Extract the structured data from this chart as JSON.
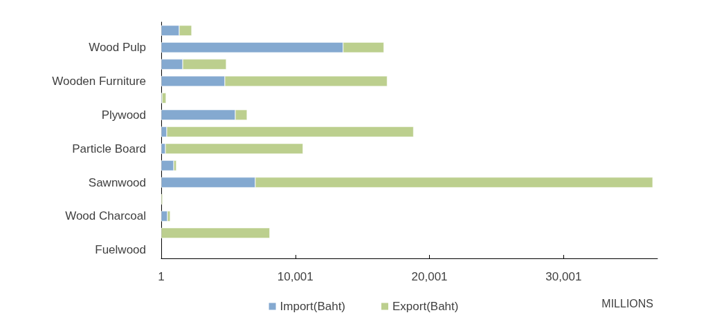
{
  "chart_data": {
    "type": "bar",
    "orientation": "horizontal",
    "stacked": true,
    "categories": [
      null,
      "Wood Pulp",
      null,
      "Wooden Furniture",
      null,
      "Plywood",
      null,
      "Particle Board",
      null,
      "Sawnwood",
      null,
      "Wood Charcoal",
      null,
      "Fuelwood"
    ],
    "series": [
      {
        "name": "Import(Baht)",
        "color": "#84a9d0",
        "values": [
          1340,
          13560,
          1600,
          4740,
          60,
          5520,
          410,
          310,
          930,
          7010,
          null,
          460,
          null,
          null
        ]
      },
      {
        "name": "Export(Baht)",
        "color": "#bccf8e",
        "values": [
          930,
          3040,
          3250,
          12110,
          300,
          880,
          18400,
          10260,
          200,
          29640,
          100,
          210,
          8090,
          null
        ]
      }
    ],
    "xlim": [
      1,
      37001
    ],
    "xticks": [
      1,
      {
        "value": 10001,
        "label": "10,001"
      },
      {
        "value": 20001,
        "label": "20,001"
      },
      {
        "value": 30001,
        "label": "30,001"
      }
    ],
    "xlabel": "MILLIONS",
    "grid": false,
    "legend": "bottom"
  }
}
